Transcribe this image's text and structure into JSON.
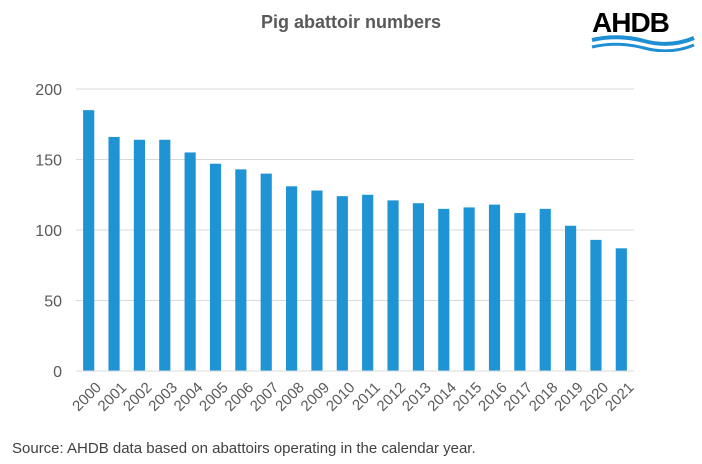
{
  "header": {
    "title": "Pig abattoir numbers",
    "logo_text": "AHDB"
  },
  "footer": {
    "source": "Source:  AHDB data based on abattoirs operating in the calendar year."
  },
  "colors": {
    "bar": "#1f94d4",
    "logo": "#1e8fd2",
    "grid": "#d9d9d9",
    "text": "#595959"
  },
  "chart_data": {
    "type": "bar",
    "title": "Pig abattoir numbers",
    "xlabel": "",
    "ylabel": "",
    "ylim": [
      0,
      200
    ],
    "yticks": [
      0,
      50,
      100,
      150,
      200
    ],
    "grid": true,
    "legend": "none",
    "categories": [
      "2000",
      "2001",
      "2002",
      "2003",
      "2004",
      "2005",
      "2006",
      "2007",
      "2008",
      "2009",
      "2010",
      "2011",
      "2012",
      "2013",
      "2014",
      "2015",
      "2016",
      "2017",
      "2018",
      "2019",
      "2020",
      "2021"
    ],
    "values": [
      185,
      166,
      164,
      164,
      155,
      147,
      143,
      140,
      131,
      128,
      124,
      125,
      121,
      119,
      115,
      116,
      118,
      112,
      115,
      103,
      93,
      87
    ]
  }
}
